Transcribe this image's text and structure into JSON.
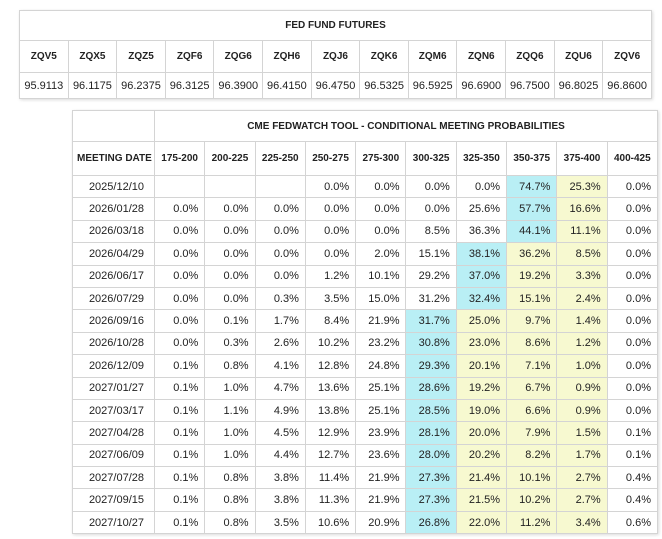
{
  "futures": {
    "title": "FED FUND FUTURES",
    "headers": [
      "ZQV5",
      "ZQX5",
      "ZQZ5",
      "ZQF6",
      "ZQG6",
      "ZQH6",
      "ZQJ6",
      "ZQK6",
      "ZQM6",
      "ZQN6",
      "ZQQ6",
      "ZQU6",
      "ZQV6"
    ],
    "values": [
      "95.9113",
      "96.1175",
      "96.2375",
      "96.3125",
      "96.3900",
      "96.4150",
      "96.4750",
      "96.5325",
      "96.5925",
      "96.6900",
      "96.7500",
      "96.8025",
      "96.8600"
    ]
  },
  "fedwatch": {
    "title": "CME FEDWATCH TOOL - CONDITIONAL MEETING PROBABILITIES",
    "colors": {
      "max": "#b9eff5",
      "between": "#f7f9d0"
    },
    "headers": [
      "MEETING DATE",
      "175-200",
      "200-225",
      "225-250",
      "250-275",
      "275-300",
      "300-325",
      "325-350",
      "350-375",
      "375-400",
      "400-425"
    ],
    "rows": [
      [
        "2025/12/10",
        null,
        null,
        null,
        "0.0%",
        "0.0%",
        "0.0%",
        "0.0%",
        "74.7%",
        "25.3%",
        "0.0%"
      ],
      [
        "2026/01/28",
        "0.0%",
        "0.0%",
        "0.0%",
        "0.0%",
        "0.0%",
        "0.0%",
        "25.6%",
        "57.7%",
        "16.6%",
        "0.0%"
      ],
      [
        "2026/03/18",
        "0.0%",
        "0.0%",
        "0.0%",
        "0.0%",
        "0.0%",
        "8.5%",
        "36.3%",
        "44.1%",
        "11.1%",
        "0.0%"
      ],
      [
        "2026/04/29",
        "0.0%",
        "0.0%",
        "0.0%",
        "0.0%",
        "2.0%",
        "15.1%",
        "38.1%",
        "36.2%",
        "8.5%",
        "0.0%"
      ],
      [
        "2026/06/17",
        "0.0%",
        "0.0%",
        "0.0%",
        "1.2%",
        "10.1%",
        "29.2%",
        "37.0%",
        "19.2%",
        "3.3%",
        "0.0%"
      ],
      [
        "2026/07/29",
        "0.0%",
        "0.0%",
        "0.3%",
        "3.5%",
        "15.0%",
        "31.2%",
        "32.4%",
        "15.1%",
        "2.4%",
        "0.0%"
      ],
      [
        "2026/09/16",
        "0.0%",
        "0.1%",
        "1.7%",
        "8.4%",
        "21.9%",
        "31.7%",
        "25.0%",
        "9.7%",
        "1.4%",
        "0.0%"
      ],
      [
        "2026/10/28",
        "0.0%",
        "0.3%",
        "2.6%",
        "10.2%",
        "23.2%",
        "30.8%",
        "23.0%",
        "8.6%",
        "1.2%",
        "0.0%"
      ],
      [
        "2026/12/09",
        "0.1%",
        "0.8%",
        "4.1%",
        "12.8%",
        "24.8%",
        "29.3%",
        "20.1%",
        "7.1%",
        "1.0%",
        "0.0%"
      ],
      [
        "2027/01/27",
        "0.1%",
        "1.0%",
        "4.7%",
        "13.6%",
        "25.1%",
        "28.6%",
        "19.2%",
        "6.7%",
        "0.9%",
        "0.0%"
      ],
      [
        "2027/03/17",
        "0.1%",
        "1.1%",
        "4.9%",
        "13.8%",
        "25.1%",
        "28.5%",
        "19.0%",
        "6.6%",
        "0.9%",
        "0.0%"
      ],
      [
        "2027/04/28",
        "0.1%",
        "1.0%",
        "4.5%",
        "12.9%",
        "23.9%",
        "28.1%",
        "20.0%",
        "7.9%",
        "1.5%",
        "0.1%"
      ],
      [
        "2027/06/09",
        "0.1%",
        "1.0%",
        "4.4%",
        "12.7%",
        "23.6%",
        "28.0%",
        "20.2%",
        "8.2%",
        "1.7%",
        "0.1%"
      ],
      [
        "2027/07/28",
        "0.1%",
        "0.8%",
        "3.8%",
        "11.4%",
        "21.9%",
        "27.3%",
        "21.4%",
        "10.1%",
        "2.7%",
        "0.4%"
      ],
      [
        "2027/09/15",
        "0.1%",
        "0.8%",
        "3.8%",
        "11.3%",
        "21.9%",
        "27.3%",
        "21.5%",
        "10.2%",
        "2.7%",
        "0.4%"
      ],
      [
        "2027/10/27",
        "0.1%",
        "0.8%",
        "3.5%",
        "10.6%",
        "20.9%",
        "26.8%",
        "22.0%",
        "11.2%",
        "3.4%",
        "0.6%"
      ]
    ]
  }
}
